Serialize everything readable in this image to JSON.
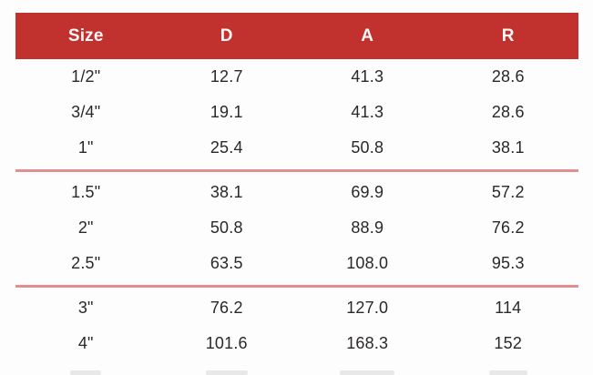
{
  "chart_data": {
    "type": "table",
    "title": "",
    "columns": [
      "Size",
      "D",
      "A",
      "R"
    ],
    "groups": [
      {
        "rows": [
          [
            "1/2\"",
            "12.7",
            "41.3",
            "28.6"
          ],
          [
            "3/4\"",
            "19.1",
            "41.3",
            "28.6"
          ],
          [
            "1\"",
            "25.4",
            "50.8",
            "38.1"
          ]
        ]
      },
      {
        "rows": [
          [
            "1.5\"",
            "38.1",
            "69.9",
            "57.2"
          ],
          [
            "2\"",
            "50.8",
            "88.9",
            "76.2"
          ],
          [
            "2.5\"",
            "63.5",
            "108.0",
            "95.3"
          ]
        ]
      },
      {
        "rows": [
          [
            "3\"",
            "76.2",
            "127.0",
            "114"
          ],
          [
            "4\"",
            "101.6",
            "168.3",
            "152"
          ]
        ]
      }
    ],
    "layout": {
      "header_position": "top",
      "group_separators": "horizontal red rules after rows 3 and 6",
      "bottom_row_clipped": true
    }
  },
  "colors": {
    "header_bg": "#c1322f",
    "header_text": "#fbf7f6",
    "divider": "#e2908f",
    "row_text": "#2b2827",
    "background": "#fdfdfd"
  }
}
